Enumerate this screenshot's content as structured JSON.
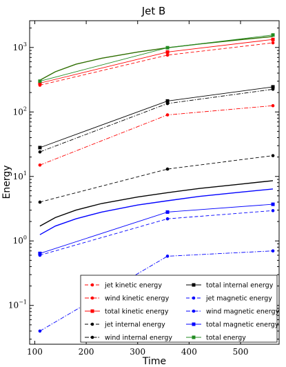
{
  "chart_data": {
    "type": "line",
    "title": "Jet B",
    "xlabel": "Time",
    "ylabel": "Energy",
    "xlim": [
      90,
      575
    ],
    "ylim": [
      0.025,
      2600
    ],
    "yscale": "log",
    "xticks": [
      100,
      200,
      300,
      400,
      500
    ],
    "yticks": [
      {
        "value": 0.1,
        "base": "10",
        "exp": "−1"
      },
      {
        "value": 1,
        "base": "10",
        "exp": "0"
      },
      {
        "value": 10,
        "base": "10",
        "exp": "1"
      },
      {
        "value": 100,
        "base": "10",
        "exp": "2"
      },
      {
        "value": 1000,
        "base": "10",
        "exp": "3"
      }
    ],
    "legend_position": "lower-right",
    "x": [
      110,
      358,
      563
    ],
    "series": [
      {
        "name": "jet kinetic energy",
        "color": "#ff0000",
        "dash": "dashed",
        "marker": "circle",
        "values": [
          260,
          760,
          1180
        ]
      },
      {
        "name": "wind kinetic energy",
        "color": "#ff0000",
        "dash": "dashdot",
        "marker": "circle",
        "values": [
          15,
          90,
          125
        ]
      },
      {
        "name": "total kinetic energy",
        "color": "#ff0000",
        "dash": "solid",
        "marker": "square",
        "values": [
          280,
          850,
          1330
        ]
      },
      {
        "name": "jet internal energy",
        "color": "#000000",
        "dash": "dashed",
        "marker": "circle",
        "values": [
          4,
          13,
          21
        ]
      },
      {
        "name": "wind internal energy",
        "color": "#000000",
        "dash": "dashdot",
        "marker": "circle",
        "values": [
          24,
          135,
          225
        ]
      },
      {
        "name": "total internal energy",
        "color": "#000000",
        "dash": "solid",
        "marker": "square",
        "values": [
          28,
          148,
          245
        ]
      },
      {
        "name": "jet magnetic energy",
        "color": "#0000ff",
        "dash": "dashed",
        "marker": "circle",
        "values": [
          0.6,
          2.2,
          2.95
        ]
      },
      {
        "name": "wind magnetic energy",
        "color": "#0000ff",
        "dash": "dashdot",
        "marker": "circle",
        "values": [
          0.04,
          0.58,
          0.7
        ]
      },
      {
        "name": "total magnetic energy",
        "color": "#0000ff",
        "dash": "solid",
        "marker": "square",
        "values": [
          0.64,
          2.8,
          3.7
        ]
      },
      {
        "name": "total energy",
        "color": "#228b22",
        "dash": "solid",
        "marker": "square",
        "values": [
          300,
          990,
          1560
        ]
      }
    ],
    "curves": [
      {
        "color": "#000000",
        "x": [
          110,
          140,
          180,
          230,
          300,
          358,
          420,
          500,
          563
        ],
        "y": [
          1.7,
          2.3,
          3.0,
          3.8,
          4.8,
          5.6,
          6.5,
          7.6,
          8.6
        ]
      },
      {
        "color": "#0000ff",
        "x": [
          110,
          140,
          180,
          230,
          300,
          358,
          420,
          500,
          563
        ],
        "y": [
          1.25,
          1.7,
          2.2,
          2.8,
          3.6,
          4.2,
          4.9,
          5.7,
          6.4
        ]
      },
      {
        "color": "#2e6e00",
        "x": [
          110,
          140,
          180,
          230,
          300,
          358,
          420,
          500,
          563
        ],
        "y": [
          310,
          420,
          550,
          680,
          850,
          990,
          1130,
          1320,
          1480
        ]
      }
    ]
  }
}
